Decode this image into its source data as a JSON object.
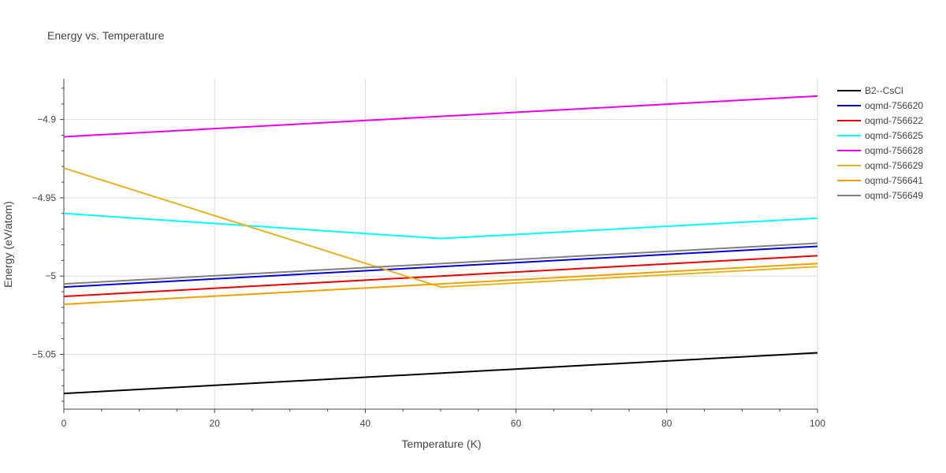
{
  "chart_data": {
    "type": "line",
    "title": "Energy vs. Temperature",
    "xlabel": "Temperature (K)",
    "ylabel": "Energy (eV/atom)",
    "xlim": [
      0,
      100
    ],
    "ylim": [
      -5.085,
      -4.874
    ],
    "x_ticks": [
      0,
      20,
      40,
      60,
      80,
      100
    ],
    "x_tick_labels": [
      "0",
      "20",
      "40",
      "60",
      "80",
      "100"
    ],
    "y_ticks": [
      -5.05,
      -5,
      -4.95,
      -4.9
    ],
    "y_tick_labels": [
      "−5.05",
      "−5",
      "−4.95",
      "−4.9"
    ],
    "grid": true,
    "legend_position": "right",
    "series": [
      {
        "name": "B2--CsCl",
        "color": "#000000",
        "x": [
          0,
          50,
          100
        ],
        "y": [
          -5.075,
          -5.062,
          -5.049
        ]
      },
      {
        "name": "oqmd-756620",
        "color": "#0000dd",
        "x": [
          0,
          50,
          100
        ],
        "y": [
          -5.007,
          -4.994,
          -4.981
        ]
      },
      {
        "name": "oqmd-756622",
        "color": "#ee0000",
        "x": [
          0,
          50,
          100
        ],
        "y": [
          -5.013,
          -5.0,
          -4.987
        ]
      },
      {
        "name": "oqmd-756625",
        "color": "#00ffff",
        "x": [
          0,
          50,
          100
        ],
        "y": [
          -4.96,
          -4.976,
          -4.963
        ]
      },
      {
        "name": "oqmd-756628",
        "color": "#ee00ee",
        "x": [
          0,
          50,
          100
        ],
        "y": [
          -4.911,
          -4.898,
          -4.885
        ]
      },
      {
        "name": "oqmd-756629",
        "color": "#e6b422",
        "x": [
          0,
          50,
          100
        ],
        "y": [
          -4.931,
          -5.007,
          -4.994
        ]
      },
      {
        "name": "oqmd-756641",
        "color": "#f0a000",
        "x": [
          0,
          50,
          100
        ],
        "y": [
          -5.018,
          -5.005,
          -4.992
        ]
      },
      {
        "name": "oqmd-756649",
        "color": "#808080",
        "x": [
          0,
          50,
          100
        ],
        "y": [
          -5.005,
          -4.992,
          -4.979
        ]
      }
    ]
  }
}
